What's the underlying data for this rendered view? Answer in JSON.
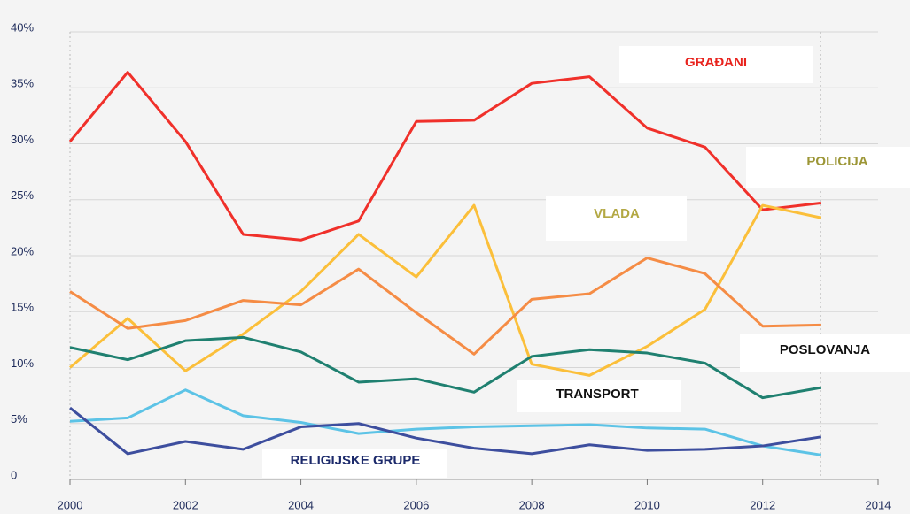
{
  "chart_data": {
    "type": "line",
    "x": [
      2000,
      2001,
      2002,
      2003,
      2004,
      2005,
      2006,
      2007,
      2008,
      2009,
      2010,
      2011,
      2012,
      2013
    ],
    "series": [
      {
        "name": "GRAĐANI",
        "color": "#f0302a",
        "values": [
          30.2,
          36.4,
          30.2,
          21.9,
          21.4,
          23.1,
          32.0,
          32.1,
          35.4,
          36.0,
          31.4,
          29.7,
          24.1,
          24.7
        ]
      },
      {
        "name": "POLICIJA",
        "color": "#fbbf3a",
        "values": [
          10.0,
          14.4,
          9.7,
          13.0,
          16.8,
          21.9,
          18.1,
          24.5,
          10.3,
          9.3,
          11.9,
          15.2,
          24.5,
          23.4
        ]
      },
      {
        "name": "VLADA",
        "color": "#f58c45",
        "values": [
          16.8,
          13.5,
          14.2,
          16.0,
          15.6,
          18.8,
          14.9,
          11.2,
          16.1,
          16.6,
          19.8,
          18.4,
          13.7,
          13.8
        ]
      },
      {
        "name": "POSLOVANJA",
        "color": "#1f8070",
        "values": [
          11.8,
          10.7,
          12.4,
          12.7,
          11.4,
          8.7,
          9.0,
          7.8,
          11.0,
          11.6,
          11.3,
          10.4,
          7.3,
          8.2
        ]
      },
      {
        "name": "TRANSPORT",
        "color": "#5cc3e6",
        "values": [
          5.2,
          5.5,
          8.0,
          5.7,
          5.1,
          4.1,
          4.5,
          4.7,
          4.8,
          4.9,
          4.6,
          4.5,
          3.0,
          2.2
        ]
      },
      {
        "name": "RELIGIJSKE GRUPE",
        "color": "#3d4e9e",
        "values": [
          6.4,
          2.3,
          3.4,
          2.7,
          4.7,
          5.0,
          3.7,
          2.8,
          2.3,
          3.1,
          2.6,
          2.7,
          3.0,
          3.8
        ]
      }
    ],
    "xlim": [
      2000,
      2014
    ],
    "xticks": [
      2000,
      2002,
      2004,
      2006,
      2008,
      2010,
      2012,
      2014
    ],
    "ylim": [
      0,
      40
    ],
    "yticks": [
      0,
      {
        "value": 5,
        "label": "5%"
      },
      {
        "value": 10,
        "label": "10%"
      },
      {
        "value": 15,
        "label": "15%"
      },
      {
        "value": 20,
        "label": "20%"
      },
      {
        "value": 25,
        "label": "25%"
      },
      {
        "value": 30,
        "label": "30%"
      },
      {
        "value": 35,
        "label": "35%"
      },
      {
        "value": 40,
        "label": "40%"
      }
    ],
    "grid": true
  }
}
